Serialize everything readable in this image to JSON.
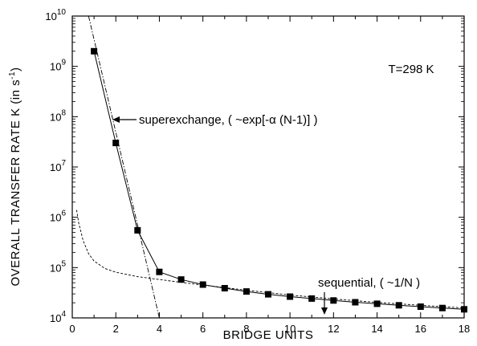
{
  "chart_data": {
    "type": "line",
    "xlabel": "BRIDGE  UNITS",
    "ylabel": "OVERALL TRANSFER RATE  K  (in s",
    "ylabel_sup": "-1",
    "ylabel_end": ")",
    "xlim": [
      0,
      18
    ],
    "ylim": [
      10000,
      10000000000
    ],
    "yscale": "log",
    "grid": false,
    "x_ticks": [
      "0",
      "2",
      "4",
      "6",
      "8",
      "10",
      "12",
      "14",
      "16",
      "18"
    ],
    "y_ticks": [
      {
        "base": "10",
        "exp": "4"
      },
      {
        "base": "10",
        "exp": "5"
      },
      {
        "base": "10",
        "exp": "6"
      },
      {
        "base": "10",
        "exp": "7"
      },
      {
        "base": "10",
        "exp": "8"
      },
      {
        "base": "10",
        "exp": "9"
      },
      {
        "base": "10",
        "exp": "10"
      }
    ],
    "temperature_label": "T=298 K",
    "annotations": {
      "superexchange": "superexchange, ( ~exp[-α (N-1)] )",
      "sequential": "sequential, ( ~1/N )"
    },
    "series": [
      {
        "style": "solid-squares",
        "x": [
          1,
          2,
          3,
          4,
          5,
          6,
          7,
          8,
          9,
          10,
          11,
          12,
          13,
          14,
          15,
          16,
          17,
          18
        ],
        "y": [
          2000000000,
          30000000,
          550000,
          82000,
          58000,
          46000,
          39000,
          33500,
          29500,
          26500,
          24200,
          22200,
          20500,
          19100,
          17800,
          16700,
          15700,
          14800
        ]
      },
      {
        "style": "dash-dot",
        "x": [
          0.75,
          4.0
        ],
        "y": [
          10000000000,
          10000
        ]
      },
      {
        "style": "dashed",
        "x": [
          0.2,
          0.3,
          0.5,
          0.75,
          1,
          1.5,
          2,
          3,
          4,
          5,
          6,
          8,
          10,
          12,
          14,
          16,
          18
        ],
        "y": [
          1400000,
          760000,
          340000,
          190000,
          135000,
          96000,
          81000,
          66000,
          58000,
          51000,
          45000,
          35500,
          28500,
          23800,
          20300,
          17800,
          15800
        ]
      }
    ]
  }
}
